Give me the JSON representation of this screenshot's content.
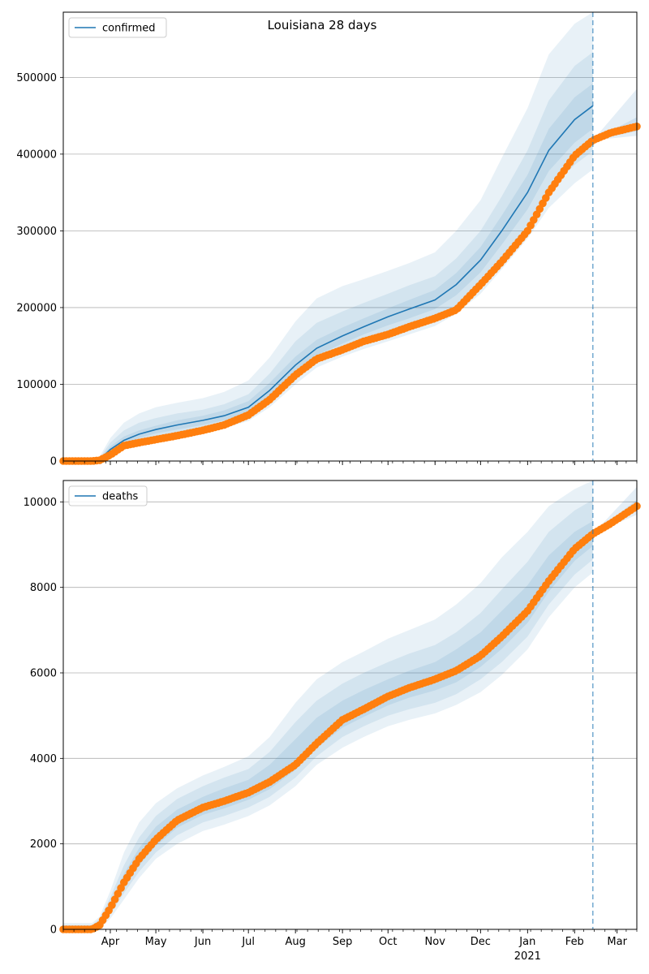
{
  "chart_data": [
    {
      "type": "line",
      "title": "Louisiana 28 days",
      "xlabel": "",
      "ylabel": "",
      "x_range": [
        "2020-03-01",
        "2021-03-14"
      ],
      "ylim": [
        0,
        585000
      ],
      "yticks": [
        0,
        100000,
        200000,
        300000,
        400000,
        500000
      ],
      "ytick_labels": [
        "0",
        "100000",
        "200000",
        "300000",
        "400000",
        "500000"
      ],
      "grid": "y",
      "legend": {
        "placement": "top-left",
        "entries": [
          "confirmed"
        ]
      },
      "forecast_start": "2021-02-13",
      "colors": {
        "model": "#1f77b4",
        "observed": "#ff7f0e",
        "band": "#1f77b4"
      },
      "series": [
        {
          "name": "confirmed",
          "role": "model-median",
          "x": [
            "2020-03-01",
            "2020-03-10",
            "2020-03-20",
            "2020-03-25",
            "2020-04-01",
            "2020-04-10",
            "2020-04-20",
            "2020-05-01",
            "2020-05-15",
            "2020-06-01",
            "2020-06-15",
            "2020-07-01",
            "2020-07-15",
            "2020-08-01",
            "2020-08-15",
            "2020-09-01",
            "2020-09-15",
            "2020-10-01",
            "2020-10-15",
            "2020-11-01",
            "2020-11-15",
            "2020-12-01",
            "2020-12-15",
            "2021-01-01",
            "2021-01-15",
            "2021-02-01",
            "2021-02-13"
          ],
          "values": [
            0,
            0,
            0,
            2000,
            15000,
            27000,
            35000,
            41000,
            47000,
            53000,
            59000,
            70000,
            92000,
            125000,
            147000,
            163000,
            175000,
            188000,
            198000,
            210000,
            230000,
            262000,
            300000,
            350000,
            405000,
            445000,
            463000
          ]
        },
        {
          "name": "observed",
          "role": "observed-cumulative",
          "x": [
            "2020-03-01",
            "2020-03-10",
            "2020-03-20",
            "2020-03-25",
            "2020-04-01",
            "2020-04-10",
            "2020-04-20",
            "2020-05-01",
            "2020-05-15",
            "2020-06-01",
            "2020-06-15",
            "2020-07-01",
            "2020-07-15",
            "2020-08-01",
            "2020-08-15",
            "2020-09-01",
            "2020-09-15",
            "2020-10-01",
            "2020-10-15",
            "2020-11-01",
            "2020-11-15",
            "2020-12-01",
            "2020-12-15",
            "2021-01-01",
            "2021-01-15",
            "2021-02-01",
            "2021-02-13",
            "2021-02-25",
            "2021-03-14"
          ],
          "values": [
            0,
            0,
            0,
            1000,
            8000,
            20000,
            24000,
            28000,
            33000,
            40000,
            47000,
            60000,
            80000,
            112000,
            133000,
            145000,
            156000,
            165000,
            175000,
            186000,
            197000,
            230000,
            260000,
            300000,
            350000,
            398000,
            418000,
            428000,
            436000
          ]
        }
      ],
      "bands": [
        {
          "label": "band-95",
          "lower": [
            0,
            0,
            0,
            500,
            7000,
            15000,
            21000,
            27000,
            32000,
            38000,
            43000,
            52000,
            70000,
            100000,
            122000,
            136000,
            146000,
            156000,
            165000,
            176000,
            192000,
            218000,
            250000,
            290000,
            330000,
            362000,
            380000
          ],
          "upper": [
            0,
            0,
            1500,
            6000,
            30000,
            50000,
            62000,
            70000,
            76000,
            82000,
            90000,
            105000,
            135000,
            182000,
            212000,
            228000,
            237000,
            248000,
            258000,
            272000,
            300000,
            340000,
            395000,
            460000,
            530000,
            570000,
            585000
          ]
        },
        {
          "label": "band-80",
          "lower": [
            0,
            0,
            0,
            800,
            9000,
            18000,
            25000,
            31000,
            36000,
            42000,
            47000,
            57000,
            76000,
            108000,
            130000,
            144000,
            154000,
            165000,
            174000,
            186000,
            203000,
            230000,
            264000,
            308000,
            352000,
            386000,
            404000
          ],
          "upper": [
            0,
            0,
            800,
            4000,
            24000,
            40000,
            50000,
            56000,
            62000,
            67000,
            74000,
            87000,
            114000,
            156000,
            180000,
            195000,
            206000,
            218000,
            229000,
            241000,
            264000,
            300000,
            345000,
            405000,
            470000,
            515000,
            533000
          ]
        },
        {
          "label": "band-50",
          "lower": [
            0,
            0,
            0,
            1200,
            12000,
            22000,
            30000,
            36000,
            41000,
            47000,
            53000,
            63000,
            84000,
            116000,
            138000,
            153000,
            165000,
            177000,
            186000,
            198000,
            216000,
            246000,
            282000,
            328000,
            378000,
            415000,
            433000
          ],
          "upper": [
            0,
            0,
            300,
            3000,
            19000,
            32000,
            40000,
            46000,
            53000,
            59000,
            66000,
            78000,
            102000,
            136000,
            158000,
            174000,
            186000,
            199000,
            210000,
            223000,
            245000,
            279000,
            320000,
            373000,
            433000,
            474000,
            492000
          ]
        }
      ],
      "forecast_bands": [
        {
          "label": "forecast-95",
          "x": [
            "2021-02-13",
            "2021-03-14"
          ],
          "lower": [
            418000,
            424000
          ],
          "upper": [
            418000,
            485000
          ]
        },
        {
          "label": "forecast-50",
          "x": [
            "2021-02-13",
            "2021-03-14"
          ],
          "lower": [
            418000,
            430000
          ],
          "upper": [
            418000,
            448000
          ]
        }
      ]
    },
    {
      "type": "line",
      "title": "",
      "xlabel": "",
      "ylabel": "",
      "x_range": [
        "2020-03-01",
        "2021-03-14"
      ],
      "ylim": [
        0,
        10500
      ],
      "yticks": [
        0,
        2000,
        4000,
        6000,
        8000,
        10000
      ],
      "ytick_labels": [
        "0",
        "2000",
        "4000",
        "6000",
        "8000",
        "10000"
      ],
      "grid": "y",
      "legend": {
        "placement": "top-left",
        "entries": [
          "deaths"
        ]
      },
      "forecast_start": "2021-02-13",
      "colors": {
        "model": "#1f77b4",
        "observed": "#ff7f0e",
        "band": "#1f77b4"
      },
      "x_tick_labels": [
        {
          "date": "2020-04-01",
          "label": "Apr"
        },
        {
          "date": "2020-05-01",
          "label": "May"
        },
        {
          "date": "2020-06-01",
          "label": "Jun"
        },
        {
          "date": "2020-07-01",
          "label": "Jul"
        },
        {
          "date": "2020-08-01",
          "label": "Aug"
        },
        {
          "date": "2020-09-01",
          "label": "Sep"
        },
        {
          "date": "2020-10-01",
          "label": "Oct"
        },
        {
          "date": "2020-11-01",
          "label": "Nov"
        },
        {
          "date": "2020-12-01",
          "label": "Dec"
        },
        {
          "date": "2021-01-01",
          "label": "Jan",
          "sublabel": "2021"
        },
        {
          "date": "2021-02-01",
          "label": "Feb"
        },
        {
          "date": "2021-03-01",
          "label": "Mar"
        }
      ],
      "series": [
        {
          "name": "deaths",
          "role": "observed-cumulative",
          "x": [
            "2020-03-01",
            "2020-03-10",
            "2020-03-20",
            "2020-03-25",
            "2020-04-01",
            "2020-04-10",
            "2020-04-20",
            "2020-05-01",
            "2020-05-15",
            "2020-06-01",
            "2020-06-15",
            "2020-07-01",
            "2020-07-15",
            "2020-08-01",
            "2020-08-15",
            "2020-09-01",
            "2020-09-15",
            "2020-10-01",
            "2020-10-15",
            "2020-11-01",
            "2020-11-15",
            "2020-12-01",
            "2020-12-15",
            "2021-01-01",
            "2021-01-15",
            "2021-02-01",
            "2021-02-13",
            "2021-02-25",
            "2021-03-14"
          ],
          "values": [
            0,
            0,
            0,
            100,
            500,
            1100,
            1650,
            2100,
            2550,
            2850,
            3000,
            3200,
            3450,
            3850,
            4350,
            4900,
            5150,
            5450,
            5650,
            5850,
            6050,
            6400,
            6850,
            7450,
            8150,
            8900,
            9250,
            9500,
            9900
          ]
        }
      ],
      "bands": [
        {
          "label": "band-95",
          "lower": [
            0,
            0,
            0,
            20,
            250,
            700,
            1200,
            1650,
            2000,
            2300,
            2450,
            2650,
            2900,
            3350,
            3850,
            4250,
            4500,
            4750,
            4900,
            5050,
            5250,
            5550,
            5950,
            6550,
            7300,
            8000,
            8350
          ],
          "upper": [
            150,
            150,
            150,
            300,
            900,
            1800,
            2500,
            2950,
            3300,
            3600,
            3800,
            4050,
            4500,
            5300,
            5850,
            6250,
            6500,
            6800,
            7000,
            7250,
            7600,
            8100,
            8700,
            9300,
            9900,
            10300,
            10500
          ]
        },
        {
          "label": "band-80",
          "lower": [
            0,
            0,
            0,
            40,
            350,
            850,
            1350,
            1800,
            2200,
            2500,
            2650,
            2850,
            3100,
            3550,
            4050,
            4500,
            4750,
            5000,
            5150,
            5300,
            5500,
            5850,
            6250,
            6850,
            7600,
            8300,
            8650
          ],
          "upper": [
            100,
            100,
            100,
            250,
            750,
            1500,
            2150,
            2650,
            3050,
            3350,
            3550,
            3750,
            4150,
            4850,
            5350,
            5750,
            6000,
            6250,
            6450,
            6650,
            6950,
            7400,
            7950,
            8600,
            9300,
            9800,
            10050
          ]
        },
        {
          "label": "band-50",
          "lower": [
            0,
            0,
            0,
            60,
            420,
            980,
            1500,
            1950,
            2380,
            2680,
            2830,
            3030,
            3280,
            3730,
            4240,
            4720,
            4970,
            5240,
            5420,
            5590,
            5780,
            6140,
            6560,
            7170,
            7900,
            8620,
            8970
          ],
          "upper": [
            60,
            60,
            60,
            180,
            620,
            1300,
            1900,
            2400,
            2800,
            3100,
            3300,
            3500,
            3850,
            4450,
            4950,
            5350,
            5600,
            5850,
            6050,
            6250,
            6550,
            6950,
            7450,
            8050,
            8750,
            9300,
            9550
          ]
        }
      ],
      "forecast_bands": [
        {
          "label": "forecast-95",
          "x": [
            "2021-02-13",
            "2021-03-14"
          ],
          "lower": [
            9250,
            9700
          ],
          "upper": [
            9250,
            10350
          ]
        },
        {
          "label": "forecast-50",
          "x": [
            "2021-02-13",
            "2021-03-14"
          ],
          "lower": [
            9250,
            9820
          ],
          "upper": [
            9250,
            10050
          ]
        }
      ]
    }
  ]
}
